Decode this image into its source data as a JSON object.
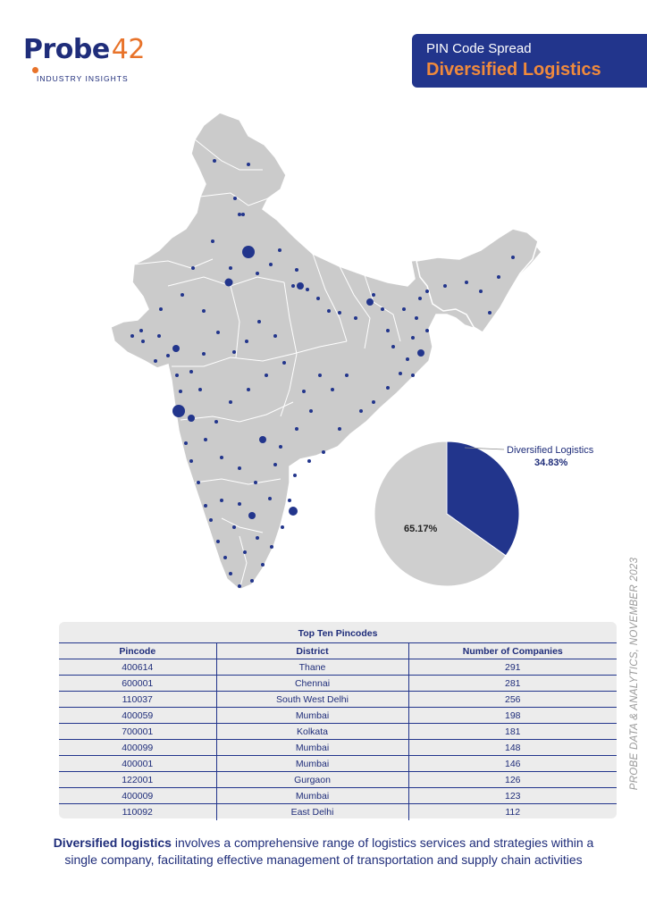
{
  "logo": {
    "word": "robe",
    "number": "42",
    "tagline": "INDUSTRY INSIGHTS",
    "accent": "#e8732a",
    "brand": "#1f2d7a"
  },
  "header": {
    "subtitle": "PIN Code Spread",
    "title": "Diversified Logistics"
  },
  "pie": {
    "slices": [
      {
        "label": "Diversified Logistics",
        "value": 34.83,
        "value_label": "34.83%",
        "color": "#22358c"
      },
      {
        "label": "",
        "value": 65.17,
        "value_label": "65.17%",
        "color": "#cfcfcf"
      }
    ]
  },
  "side_text": "PROBE DATA & ANALYTICS, NOVEMBER 2023",
  "table": {
    "title": "Top Ten Pincodes",
    "headers": [
      "Pincode",
      "District",
      "Number of Companies"
    ],
    "rows": [
      [
        "400614",
        "Thane",
        "291"
      ],
      [
        "600001",
        "Chennai",
        "281"
      ],
      [
        "110037",
        "South West Delhi",
        "256"
      ],
      [
        "400059",
        "Mumbai",
        "198"
      ],
      [
        "700001",
        "Kolkata",
        "181"
      ],
      [
        "400099",
        "Mumbai",
        "148"
      ],
      [
        "400001",
        "Mumbai",
        "146"
      ],
      [
        "122001",
        "Gurgaon",
        "126"
      ],
      [
        "400009",
        "Mumbai",
        "123"
      ],
      [
        "110092",
        "East Delhi",
        "112"
      ]
    ]
  },
  "description": {
    "bold": "Diversified logistics",
    "rest": " involves a comprehensive range of logistics services and strategies within a single company, facilitating effective management of transportation and supply chain activities"
  }
}
